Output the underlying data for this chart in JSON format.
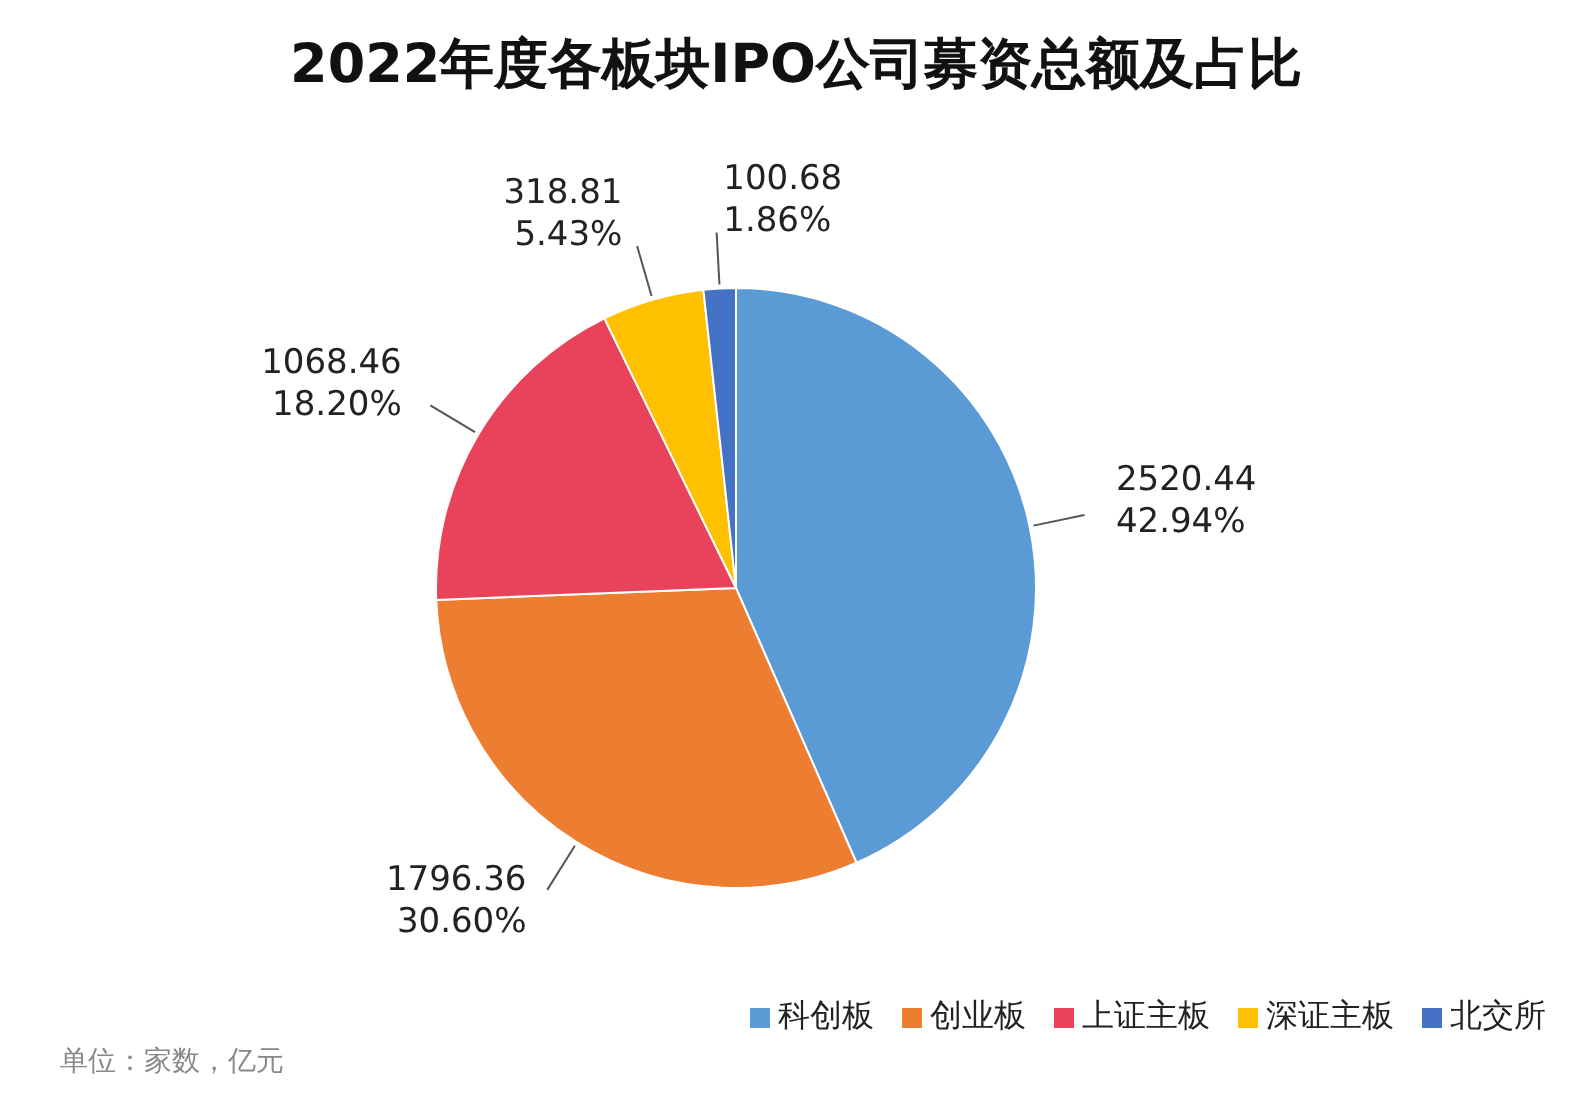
{
  "chart_data": {
    "type": "pie",
    "title": "2022年度各板块IPO公司募资总额及占比",
    "categories": [
      "科创板",
      "创业板",
      "上证主板",
      "深证主板",
      "北交所"
    ],
    "values": [
      2520.44,
      1796.36,
      1068.46,
      318.81,
      100.68
    ],
    "colors": [
      "#5b9bd5",
      "#ed7d31",
      "#e8435a",
      "#ffc000",
      "#4472c4"
    ],
    "value_labels": [
      "2520.44\n42.94%",
      "1796.36\n30.60%",
      "1068.46\n18.20%",
      "318.81\n5.43%",
      "100.68\n1.86%"
    ],
    "legend": "bottom right",
    "annotations": [
      "单位：家数，亿元"
    ]
  }
}
